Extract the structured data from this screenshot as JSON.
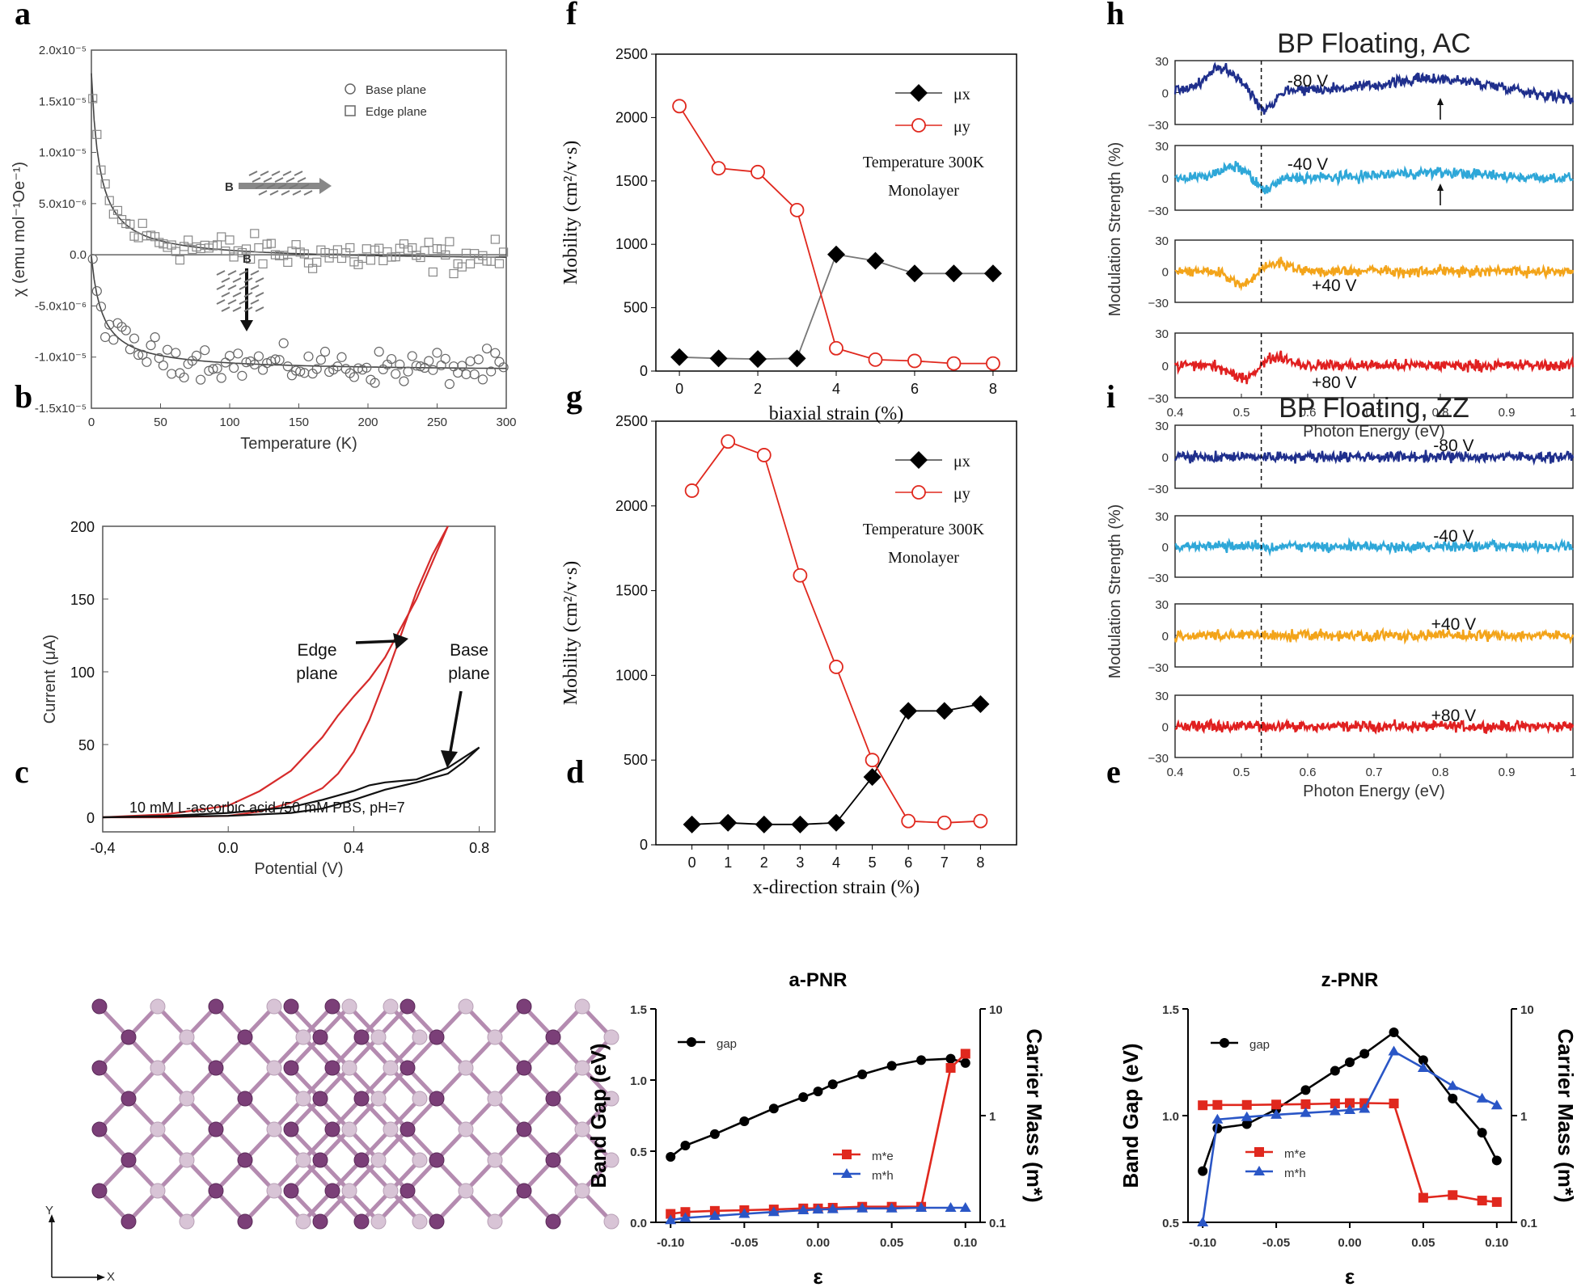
{
  "panel_letters": [
    "a",
    "b",
    "c",
    "d",
    "e",
    "f",
    "g",
    "h",
    "i"
  ],
  "chart_data": [
    {
      "id": "a",
      "type": "scatter",
      "xlabel": "Temperature (K)",
      "ylabel": "χ (emu mol⁻¹Oe⁻¹)",
      "xlim": [
        0,
        300
      ],
      "ylim": [
        -1.5e-05,
        2e-05
      ],
      "xticks": [
        0,
        50,
        100,
        150,
        200,
        250,
        300
      ],
      "yticks": [
        -1.5e-05,
        -1e-05,
        -5e-06,
        0.0,
        5e-06,
        1e-05,
        1.5e-05,
        2e-05
      ],
      "ytick_labels": [
        "-1.5x10⁻⁵",
        "-1.0x10⁻⁵",
        "-5.0x10⁻⁶",
        "0.0",
        "5.0x10⁻⁶",
        "1.0x10⁻⁵",
        "1.5x10⁻⁵",
        "2.0x10⁻⁵"
      ],
      "legend": [
        "Base plane",
        "Edge plane"
      ],
      "annotations": [
        "B",
        "B"
      ],
      "series": [
        {
          "name": "Edge plane",
          "marker": "square",
          "fit": "curie",
          "c0": -6e-07,
          "a": 0.00011,
          "t0": 6
        },
        {
          "name": "Base plane",
          "marker": "circle",
          "fit": "curie",
          "c0": -1.14e-05,
          "a": 9e-05,
          "t0": 8
        }
      ]
    },
    {
      "id": "b",
      "type": "line",
      "xlabel": "Potential (V)",
      "ylabel": "Current (μA)",
      "xlim": [
        -0.4,
        0.85
      ],
      "ylim": [
        -10,
        200
      ],
      "xticks": [
        -0.4,
        0.0,
        0.4,
        0.8
      ],
      "xtick_labels": [
        "-0,4",
        "0.0",
        "0.4",
        "0.8"
      ],
      "yticks": [
        0,
        50,
        100,
        150,
        200
      ],
      "annotations": [
        "Edge",
        "plane",
        "Base",
        "plane"
      ],
      "footnote": "10 mM L-ascorbic acid /50 mM PBS, pH=7",
      "series": [
        {
          "name": "Edge plane forward",
          "color": "#d62b2b",
          "x": [
            -0.4,
            -0.2,
            0.0,
            0.1,
            0.2,
            0.3,
            0.35,
            0.4,
            0.45,
            0.5,
            0.55,
            0.6,
            0.65,
            0.7
          ],
          "y": [
            0,
            0,
            1,
            4,
            10,
            20,
            30,
            45,
            67,
            95,
            125,
            155,
            180,
            200
          ]
        },
        {
          "name": "Edge plane reverse",
          "color": "#d62b2b",
          "x": [
            0.7,
            0.6,
            0.5,
            0.45,
            0.4,
            0.35,
            0.3,
            0.2,
            0.1,
            0.0,
            -0.2,
            -0.4
          ],
          "y": [
            200,
            150,
            110,
            95,
            83,
            70,
            55,
            32,
            18,
            8,
            2,
            0
          ]
        },
        {
          "name": "Base plane forward",
          "color": "#111111",
          "x": [
            -0.4,
            -0.2,
            0.0,
            0.2,
            0.3,
            0.4,
            0.5,
            0.6,
            0.7,
            0.75,
            0.8
          ],
          "y": [
            0,
            0.5,
            1,
            3,
            6,
            12,
            19,
            24,
            30,
            38,
            48
          ]
        },
        {
          "name": "Base plane reverse",
          "color": "#111111",
          "x": [
            0.8,
            0.7,
            0.6,
            0.5,
            0.45,
            0.4,
            0.3,
            0.2,
            0.0,
            -0.2,
            -0.4
          ],
          "y": [
            48,
            34,
            26,
            24,
            22,
            18,
            12,
            7,
            3,
            1,
            0
          ]
        }
      ]
    },
    {
      "id": "c",
      "type": "diagram",
      "axis_labels": [
        "Y",
        "X"
      ]
    },
    {
      "id": "d",
      "type": "line",
      "title": "a-PNR",
      "xlabel": "ε",
      "ylabel": "Band Gap (eV)",
      "y2label": "Carrier Mass (m*)",
      "xlim": [
        -0.11,
        0.11
      ],
      "ylim": [
        0,
        1.5
      ],
      "y2lim": [
        0.1,
        10
      ],
      "y2scale": "log",
      "xticks": [
        -0.1,
        -0.05,
        0.0,
        0.05,
        0.1
      ],
      "xtick_labels": [
        "-0.10",
        "-0.05",
        "0.00",
        "0.05",
        "0.10"
      ],
      "yticks": [
        0,
        0.5,
        1.0,
        1.5
      ],
      "ytick_labels": [
        "0.0",
        "0.5",
        "1.0",
        "1.5"
      ],
      "y2ticks": [
        0.1,
        1,
        10
      ],
      "y2tick_labels": [
        "0.1",
        "1",
        "10"
      ],
      "legend": [
        "gap",
        "m*e",
        "m*h"
      ],
      "series": [
        {
          "name": "gap",
          "color": "#000000",
          "axis": "left",
          "x": [
            -0.1,
            -0.09,
            -0.07,
            -0.05,
            -0.03,
            -0.01,
            0.0,
            0.01,
            0.03,
            0.05,
            0.07,
            0.09,
            0.1
          ],
          "y": [
            0.46,
            0.54,
            0.62,
            0.71,
            0.8,
            0.88,
            0.92,
            0.97,
            1.04,
            1.1,
            1.14,
            1.15,
            1.12
          ]
        },
        {
          "name": "m*e",
          "color": "#e0281e",
          "axis": "right",
          "x": [
            -0.1,
            -0.09,
            -0.07,
            -0.05,
            -0.03,
            -0.01,
            0.0,
            0.01,
            0.03,
            0.05,
            0.07,
            0.09,
            0.1
          ],
          "y": [
            0.12,
            0.125,
            0.128,
            0.13,
            0.132,
            0.135,
            0.135,
            0.137,
            0.14,
            0.14,
            0.14,
            2.8,
            3.8
          ]
        },
        {
          "name": "m*h",
          "color": "#2a56c6",
          "axis": "right",
          "x": [
            -0.1,
            -0.09,
            -0.07,
            -0.05,
            -0.03,
            -0.01,
            0.0,
            0.01,
            0.03,
            0.05,
            0.07,
            0.09,
            0.1
          ],
          "y": [
            0.105,
            0.11,
            0.115,
            0.12,
            0.125,
            0.13,
            0.132,
            0.133,
            0.135,
            0.135,
            0.137,
            0.137,
            0.137
          ]
        }
      ]
    },
    {
      "id": "e",
      "type": "line",
      "title": "z-PNR",
      "xlabel": "ε",
      "ylabel": "Band Gap (eV)",
      "y2label": "Carrier Mass (m*)",
      "xlim": [
        -0.11,
        0.11
      ],
      "ylim": [
        0.5,
        1.5
      ],
      "y2lim": [
        0.1,
        10
      ],
      "y2scale": "log",
      "xticks": [
        -0.1,
        -0.05,
        0.0,
        0.05,
        0.1
      ],
      "xtick_labels": [
        "-0.10",
        "-0.05",
        "0.00",
        "0.05",
        "0.10"
      ],
      "yticks": [
        0.5,
        1.0,
        1.5
      ],
      "ytick_labels": [
        "0.5",
        "1.0",
        "1.5"
      ],
      "y2ticks": [
        0.1,
        1,
        10
      ],
      "y2tick_labels": [
        "0.1",
        "1",
        "10"
      ],
      "legend": [
        "gap",
        "m*e",
        "m*h"
      ],
      "series": [
        {
          "name": "gap",
          "color": "#000000",
          "axis": "left",
          "x": [
            -0.1,
            -0.09,
            -0.07,
            -0.05,
            -0.03,
            -0.01,
            0.0,
            0.01,
            0.03,
            0.05,
            0.07,
            0.09,
            0.1
          ],
          "y": [
            0.74,
            0.94,
            0.96,
            1.03,
            1.12,
            1.21,
            1.25,
            1.29,
            1.39,
            1.26,
            1.08,
            0.92,
            0.79
          ]
        },
        {
          "name": "m*e",
          "color": "#e0281e",
          "axis": "right",
          "x": [
            -0.1,
            -0.09,
            -0.07,
            -0.05,
            -0.03,
            -0.01,
            0.0,
            0.01,
            0.03,
            0.05,
            0.07,
            0.09,
            0.1
          ],
          "y": [
            1.25,
            1.26,
            1.26,
            1.27,
            1.28,
            1.3,
            1.31,
            1.31,
            1.3,
            0.17,
            0.18,
            0.16,
            0.155
          ]
        },
        {
          "name": "m*h",
          "color": "#2a56c6",
          "axis": "right",
          "x": [
            -0.1,
            -0.09,
            -0.07,
            -0.05,
            -0.03,
            -0.01,
            0.0,
            0.01,
            0.03,
            0.05,
            0.07,
            0.09,
            0.1
          ],
          "y": [
            0.1,
            0.92,
            0.97,
            1.02,
            1.06,
            1.1,
            1.13,
            1.16,
            4.0,
            2.8,
            1.9,
            1.45,
            1.25
          ]
        }
      ]
    },
    {
      "id": "f",
      "type": "line",
      "xlabel": "biaxial strain (%)",
      "ylabel": "Mobility (cm²/v·s)",
      "xlim": [
        -0.6,
        8.6
      ],
      "ylim": [
        0,
        2500
      ],
      "xticks": [
        0,
        2,
        4,
        6,
        8
      ],
      "yticks": [
        0,
        500,
        1000,
        1500,
        2000,
        2500
      ],
      "legend": [
        "μx",
        "μy"
      ],
      "annotations": [
        "Temperature 300K",
        "Monolayer"
      ],
      "series": [
        {
          "name": "μx",
          "color": "#000000",
          "marker": "diamond",
          "x": [
            0,
            1,
            2,
            3,
            4,
            5,
            6,
            7,
            8
          ],
          "y": [
            110,
            100,
            95,
            100,
            920,
            870,
            770,
            770,
            770
          ]
        },
        {
          "name": "μy",
          "color": "#e0281e",
          "marker": "circle-open",
          "x": [
            0,
            1,
            2,
            3,
            4,
            5,
            6,
            7,
            8
          ],
          "y": [
            2090,
            1600,
            1570,
            1270,
            180,
            90,
            80,
            60,
            60
          ]
        }
      ]
    },
    {
      "id": "g",
      "type": "line",
      "xlabel": "x-direction strain (%)",
      "ylabel": "Mobility (cm²/v·s)",
      "xlim": [
        -1,
        9
      ],
      "ylim": [
        0,
        2500
      ],
      "xticks": [
        0,
        1,
        2,
        3,
        4,
        5,
        6,
        7,
        8
      ],
      "yticks": [
        0,
        500,
        1000,
        1500,
        2000,
        2500
      ],
      "legend": [
        "μx",
        "μy"
      ],
      "annotations": [
        "Temperature 300K",
        "Monolayer"
      ],
      "series": [
        {
          "name": "μx",
          "color": "#000000",
          "marker": "diamond",
          "x": [
            0,
            1,
            2,
            3,
            4,
            5,
            6,
            7,
            8
          ],
          "y": [
            120,
            130,
            120,
            120,
            130,
            400,
            790,
            790,
            830
          ]
        },
        {
          "name": "μy",
          "color": "#e0281e",
          "marker": "circle-open",
          "x": [
            0,
            1,
            2,
            3,
            4,
            5,
            6,
            7,
            8
          ],
          "y": [
            2090,
            2380,
            2300,
            1590,
            1050,
            500,
            140,
            130,
            140
          ]
        }
      ]
    },
    {
      "id": "h",
      "type": "line",
      "title": "BP Floating, AC",
      "xlabel": "Photon Energy (eV)",
      "ylabel": "Modulation Strength (%)",
      "xlim": [
        0.4,
        1.0
      ],
      "ylim": [
        -30,
        30
      ],
      "xticks": [
        0.4,
        0.5,
        0.6,
        0.7,
        0.8,
        0.9,
        1.0
      ],
      "xtick_labels": [
        "0.4",
        "0.5",
        "0.6",
        "0.7",
        "0.8",
        "0.9",
        "1"
      ],
      "yticks": [
        -30,
        0,
        30
      ],
      "ytick_labels": [
        "−30",
        "0",
        "30"
      ],
      "dashed_x": 0.53,
      "series": [
        {
          "name": "-80 V",
          "color": "#1f2f8c",
          "shape": "ac80",
          "arrow_x": 0.8
        },
        {
          "name": "-40 V",
          "color": "#2ea7d8",
          "shape": "ac40",
          "arrow_x": 0.8
        },
        {
          "name": "+40 V",
          "color": "#f3a41a",
          "shape": "acp"
        },
        {
          "name": "+80 V",
          "color": "#e02020",
          "shape": "acp"
        }
      ]
    },
    {
      "id": "i",
      "type": "line",
      "title": "BP Floating, ZZ",
      "xlabel": "Photon Energy (eV)",
      "ylabel": "Modulation Strength (%)",
      "xlim": [
        0.4,
        1.0
      ],
      "ylim": [
        -30,
        30
      ],
      "xticks": [
        0.4,
        0.5,
        0.6,
        0.7,
        0.8,
        0.9,
        1.0
      ],
      "xtick_labels": [
        "0.4",
        "0.5",
        "0.6",
        "0.7",
        "0.8",
        "0.9",
        "1"
      ],
      "yticks": [
        -30,
        0,
        30
      ],
      "ytick_labels": [
        "−30",
        "0",
        "30"
      ],
      "dashed_x": 0.53,
      "series": [
        {
          "name": "-80 V",
          "color": "#1f2f8c",
          "shape": "flat"
        },
        {
          "name": "-40 V",
          "color": "#2ea7d8",
          "shape": "flat"
        },
        {
          "name": "+40 V",
          "color": "#f3a41a",
          "shape": "flat"
        },
        {
          "name": "+80 V",
          "color": "#e02020",
          "shape": "flat"
        }
      ]
    }
  ]
}
